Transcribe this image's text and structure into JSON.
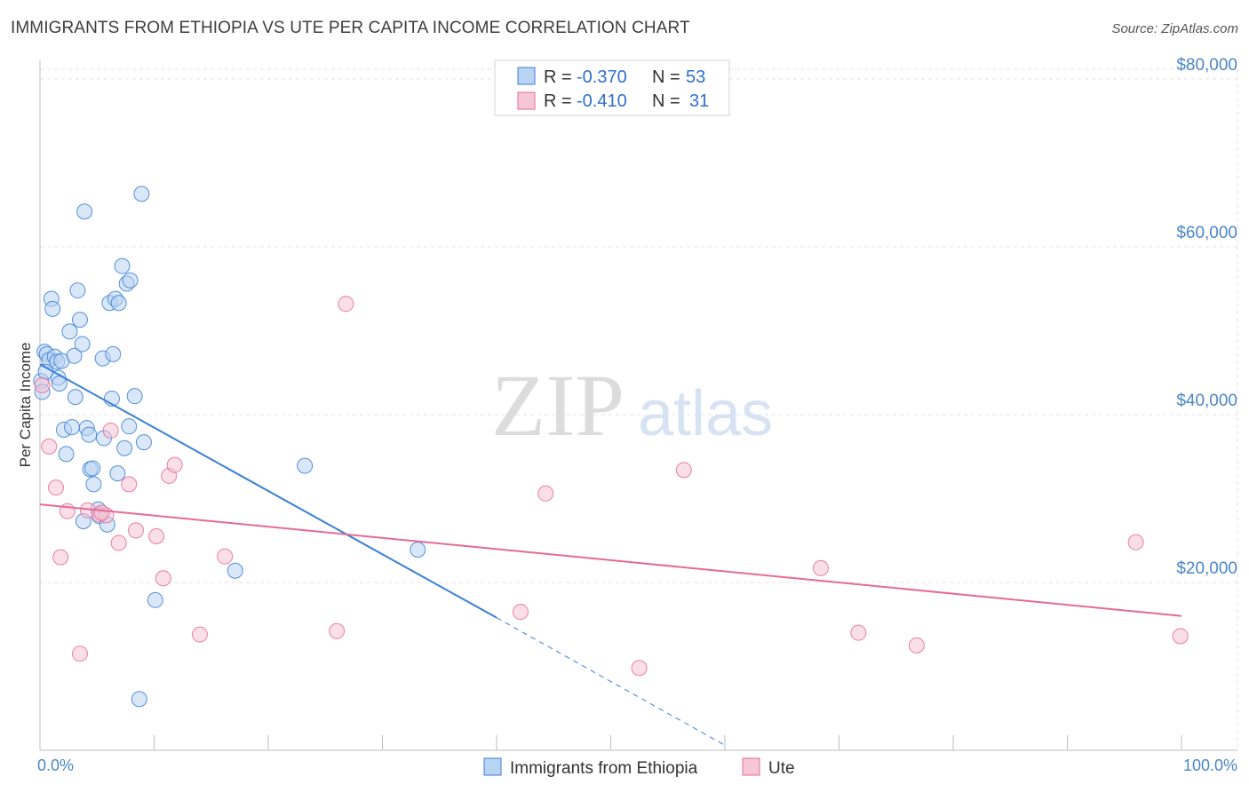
{
  "header": {
    "title": "IMMIGRANTS FROM ETHIOPIA VS UTE PER CAPITA INCOME CORRELATION CHART",
    "source": "Source: ZipAtlas.com"
  },
  "watermark": {
    "zip": "ZIP",
    "atlas": "atlas"
  },
  "colors": {
    "blue": "#3a7fd5",
    "blue_fill": "#b9d3f2",
    "pink": "#e56a95",
    "pink_fill": "#f6c5d6",
    "grid": "#e3e3e3",
    "tick_text": "#4a86c8"
  },
  "legend": {
    "r_label": "R =",
    "n_label": "N =",
    "series": [
      {
        "name": "Immigrants from Ethiopia",
        "r": "-0.370",
        "n": "53"
      },
      {
        "name": "Ute",
        "r": "-0.410",
        "n": "31"
      }
    ]
  },
  "chart_data": {
    "type": "scatter",
    "title": "IMMIGRANTS FROM ETHIOPIA VS UTE PER CAPITA INCOME CORRELATION CHART",
    "xlabel": "",
    "ylabel": "Per Capita Income",
    "xlim": [
      0,
      100
    ],
    "ylim": [
      0,
      82000
    ],
    "x_tick_labels": [
      "0.0%",
      "100.0%"
    ],
    "y_ticks": [
      20000,
      40000,
      60000,
      80000
    ],
    "y_tick_labels": [
      "$20,000",
      "$40,000",
      "$60,000",
      "$80,000"
    ],
    "grid": true,
    "legend_position": "top-center",
    "series": [
      {
        "name": "Immigrants from Ethiopia",
        "color": "#3a7fd5",
        "points": [
          [
            0.1,
            44000
          ],
          [
            0.4,
            47500
          ],
          [
            0.6,
            47200
          ],
          [
            0.8,
            46500
          ],
          [
            1.0,
            53800
          ],
          [
            1.1,
            52600
          ],
          [
            1.3,
            46900
          ],
          [
            1.5,
            46300
          ],
          [
            1.6,
            44400
          ],
          [
            1.7,
            43700
          ],
          [
            1.9,
            46400
          ],
          [
            2.1,
            38200
          ],
          [
            2.3,
            35300
          ],
          [
            2.6,
            49900
          ],
          [
            2.8,
            38500
          ],
          [
            3.0,
            47000
          ],
          [
            3.1,
            42100
          ],
          [
            3.3,
            54800
          ],
          [
            3.5,
            51300
          ],
          [
            3.7,
            48400
          ],
          [
            3.8,
            27300
          ],
          [
            3.9,
            64200
          ],
          [
            4.1,
            38400
          ],
          [
            4.3,
            37600
          ],
          [
            4.4,
            33500
          ],
          [
            4.6,
            33600
          ],
          [
            4.7,
            31700
          ],
          [
            5.1,
            28700
          ],
          [
            5.2,
            27900
          ],
          [
            5.5,
            46700
          ],
          [
            5.6,
            37200
          ],
          [
            5.9,
            26900
          ],
          [
            6.1,
            53300
          ],
          [
            6.3,
            41900
          ],
          [
            6.4,
            47200
          ],
          [
            6.6,
            53800
          ],
          [
            6.8,
            33000
          ],
          [
            6.9,
            53300
          ],
          [
            7.2,
            57700
          ],
          [
            7.4,
            36000
          ],
          [
            7.6,
            55600
          ],
          [
            7.8,
            38600
          ],
          [
            7.9,
            56000
          ],
          [
            8.3,
            42200
          ],
          [
            8.7,
            6100
          ],
          [
            8.9,
            66300
          ],
          [
            9.1,
            36700
          ],
          [
            10.1,
            17900
          ],
          [
            17.1,
            21400
          ],
          [
            23.2,
            33900
          ],
          [
            33.1,
            23900
          ],
          [
            0.2,
            42700
          ],
          [
            0.5,
            45100
          ]
        ]
      },
      {
        "name": "Ute",
        "color": "#e56a95",
        "points": [
          [
            0.2,
            43500
          ],
          [
            0.8,
            36200
          ],
          [
            1.4,
            31300
          ],
          [
            1.8,
            23000
          ],
          [
            2.4,
            28500
          ],
          [
            3.5,
            11500
          ],
          [
            4.2,
            28600
          ],
          [
            5.2,
            28100
          ],
          [
            5.8,
            28000
          ],
          [
            6.2,
            38100
          ],
          [
            6.9,
            24700
          ],
          [
            7.8,
            31700
          ],
          [
            8.4,
            26200
          ],
          [
            10.2,
            25500
          ],
          [
            10.8,
            20500
          ],
          [
            11.3,
            32700
          ],
          [
            11.8,
            34000
          ],
          [
            14.0,
            13800
          ],
          [
            16.2,
            23100
          ],
          [
            26.0,
            14200
          ],
          [
            26.8,
            53200
          ],
          [
            42.1,
            16500
          ],
          [
            44.3,
            30600
          ],
          [
            52.5,
            9800
          ],
          [
            56.4,
            33400
          ],
          [
            68.4,
            21700
          ],
          [
            71.7,
            14000
          ],
          [
            76.8,
            12500
          ],
          [
            96.0,
            24800
          ],
          [
            99.9,
            13600
          ],
          [
            5.4,
            28300
          ]
        ]
      }
    ],
    "trendlines": [
      {
        "series": "Immigrants from Ethiopia",
        "x_start": 0,
        "y_start": 46000,
        "x_end": 40,
        "y_end": 15800,
        "dashed_to_x": 60,
        "dashed_to_y": 600
      },
      {
        "series": "Ute",
        "x_start": 0,
        "y_start": 29300,
        "x_end": 100,
        "y_end": 16000
      }
    ]
  }
}
